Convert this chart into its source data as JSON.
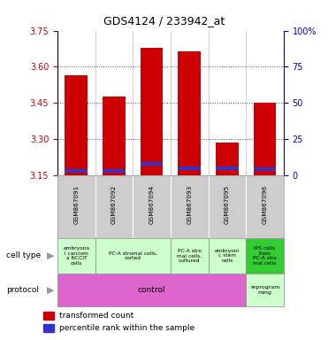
{
  "title": "GDS4124 / 233942_at",
  "samples": [
    "GSM867091",
    "GSM867092",
    "GSM867094",
    "GSM867093",
    "GSM867095",
    "GSM867096"
  ],
  "transformed_counts": [
    3.565,
    3.475,
    3.68,
    3.665,
    3.285,
    3.45
  ],
  "percentile_ranks_pct": [
    3,
    3,
    8,
    5,
    5,
    4
  ],
  "ymin": 3.15,
  "ymax": 3.75,
  "yticks": [
    3.15,
    3.3,
    3.45,
    3.6,
    3.75
  ],
  "y2min": 0,
  "y2max": 100,
  "y2ticks": [
    0,
    25,
    50,
    75,
    100
  ],
  "y2tick_labels": [
    "0",
    "25",
    "50",
    "75",
    "100%"
  ],
  "bar_color": "#cc0000",
  "percentile_color": "#3333cc",
  "bar_width": 0.6,
  "cell_groups": [
    {
      "span": [
        0,
        1
      ],
      "label": "embryona\nl carciom\na NCCIT\ncells",
      "color": "#ccffcc"
    },
    {
      "span": [
        1,
        3
      ],
      "label": "PC-A stromal cells,\nsorted",
      "color": "#ccffcc"
    },
    {
      "span": [
        3,
        4
      ],
      "label": "PC-A stro\nmal cells,\ncultured",
      "color": "#ccffcc"
    },
    {
      "span": [
        4,
        5
      ],
      "label": "embryoni\nc stem\ncells",
      "color": "#ccffcc"
    },
    {
      "span": [
        5,
        6
      ],
      "label": "iPS cells\nfrom\nPC-A stro\nmal cells",
      "color": "#33cc33"
    }
  ],
  "protocol_groups": [
    {
      "span": [
        0,
        5
      ],
      "label": "control",
      "color": "#dd66cc"
    },
    {
      "span": [
        5,
        6
      ],
      "label": "reprogram\nming",
      "color": "#ccffcc"
    }
  ],
  "left_labels": [
    {
      "text": "cell type",
      "arrow": true
    },
    {
      "text": "protocol",
      "arrow": true
    }
  ],
  "bar_color_hex": "#cc0000",
  "percentile_color_hex": "#3333cc",
  "ylabel_color": "#cc0000",
  "y2label_color": "#0000cc",
  "background_color": "#ffffff",
  "grid_color": "#555555",
  "sample_bg": "#cccccc",
  "plot_border_color": "#000000"
}
